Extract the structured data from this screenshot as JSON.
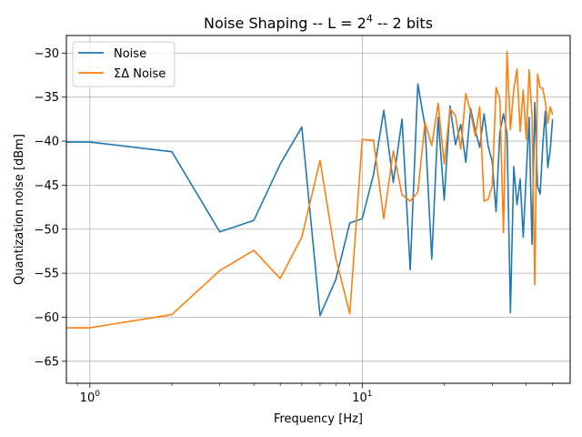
{
  "chart_data": {
    "type": "line",
    "title": "Noise Shaping -- L = 2",
    "title_exponent": "4",
    "title_suffix": " -- 2 bits",
    "xlabel": "Frequency [Hz]",
    "ylabel": "Quantization noise [dBm]",
    "xscale": "log",
    "xlim": [
      0.82,
      58
    ],
    "ylim": [
      -67.5,
      -28
    ],
    "grid": true,
    "legend_position": "upper-left",
    "x_major_ticks": [
      {
        "value": 1,
        "base": "10",
        "exp": "0"
      },
      {
        "value": 10,
        "base": "10",
        "exp": "1"
      }
    ],
    "y_ticks": [
      -65,
      -60,
      -55,
      -50,
      -45,
      -40,
      -35,
      -30
    ],
    "y_tick_labels": [
      "−65",
      "−60",
      "−55",
      "−50",
      "−45",
      "−40",
      "−35",
      "−30"
    ],
    "x": [
      0,
      1,
      2,
      3,
      4,
      5,
      6,
      7,
      8,
      9,
      10,
      11,
      12,
      13,
      14,
      15,
      16,
      17,
      18,
      19,
      20,
      21,
      22,
      23,
      24,
      25,
      26,
      27,
      28,
      29,
      30,
      31,
      32,
      33,
      34,
      35,
      36,
      37,
      38,
      39,
      40,
      41,
      42,
      43,
      44,
      45,
      46,
      47,
      48,
      49,
      50
    ],
    "series": [
      {
        "name": "Noise",
        "color": "#1f77b4",
        "values": [
          -40.1,
          -40.1,
          -41.2,
          -50.3,
          -49.0,
          -42.6,
          -38.4,
          -59.8,
          -55.7,
          -49.3,
          -48.8,
          -43.8,
          -36.5,
          -44.7,
          -37.5,
          -54.6,
          -33.5,
          -38.3,
          -53.4,
          -37.3,
          -46.7,
          -36.0,
          -40.4,
          -38.1,
          -42.4,
          -36.3,
          -38.8,
          -40.7,
          -36.9,
          -40.6,
          -42.3,
          -48.0,
          -39.0,
          -36.9,
          -39.1,
          -59.5,
          -42.9,
          -47.2,
          -44.3,
          -50.9,
          -43.8,
          -37.3,
          -51.7,
          -35.6,
          -45.1,
          -46.0,
          -40.5,
          -36.6,
          -43.0,
          -41.0,
          -37.5
        ]
      },
      {
        "name": "ΣΔ Noise",
        "color": "#ff7f0e",
        "values": [
          -61.2,
          -61.2,
          -59.7,
          -54.7,
          -52.4,
          -55.6,
          -50.9,
          -42.2,
          -53.3,
          -59.6,
          -39.8,
          -39.9,
          -48.8,
          -41.1,
          -46.1,
          -46.8,
          -45.8,
          -37.9,
          -40.5,
          -35.7,
          -42.6,
          -36.3,
          -37.1,
          -40.9,
          -34.6,
          -36.7,
          -39.4,
          -36.1,
          -46.8,
          -46.6,
          -45.1,
          -33.9,
          -35.2,
          -50.4,
          -29.8,
          -38.7,
          -34.1,
          -31.8,
          -38.9,
          -34.2,
          -39.8,
          -31.9,
          -37.1,
          -56.3,
          -32.4,
          -33.9,
          -34.0,
          -35.5,
          -38.0,
          -36.1,
          -37.0
        ]
      }
    ]
  }
}
